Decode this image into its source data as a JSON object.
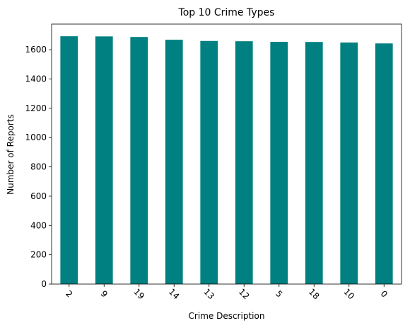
{
  "chart_data": {
    "type": "bar",
    "title": "Top 10 Crime Types",
    "xlabel": "Crime Description",
    "ylabel": "Number of Reports",
    "categories": [
      "2",
      "9",
      "19",
      "14",
      "13",
      "12",
      "5",
      "18",
      "10",
      "0"
    ],
    "values": [
      1692,
      1691,
      1687,
      1668,
      1660,
      1658,
      1654,
      1653,
      1649,
      1643
    ],
    "ylim": [
      0,
      1775
    ],
    "yticks": [
      0,
      200,
      400,
      600,
      800,
      1000,
      1200,
      1400,
      1600
    ],
    "grid": false,
    "legend": "none",
    "bar_color": "#008080",
    "xtick_rotation_deg": 45
  }
}
